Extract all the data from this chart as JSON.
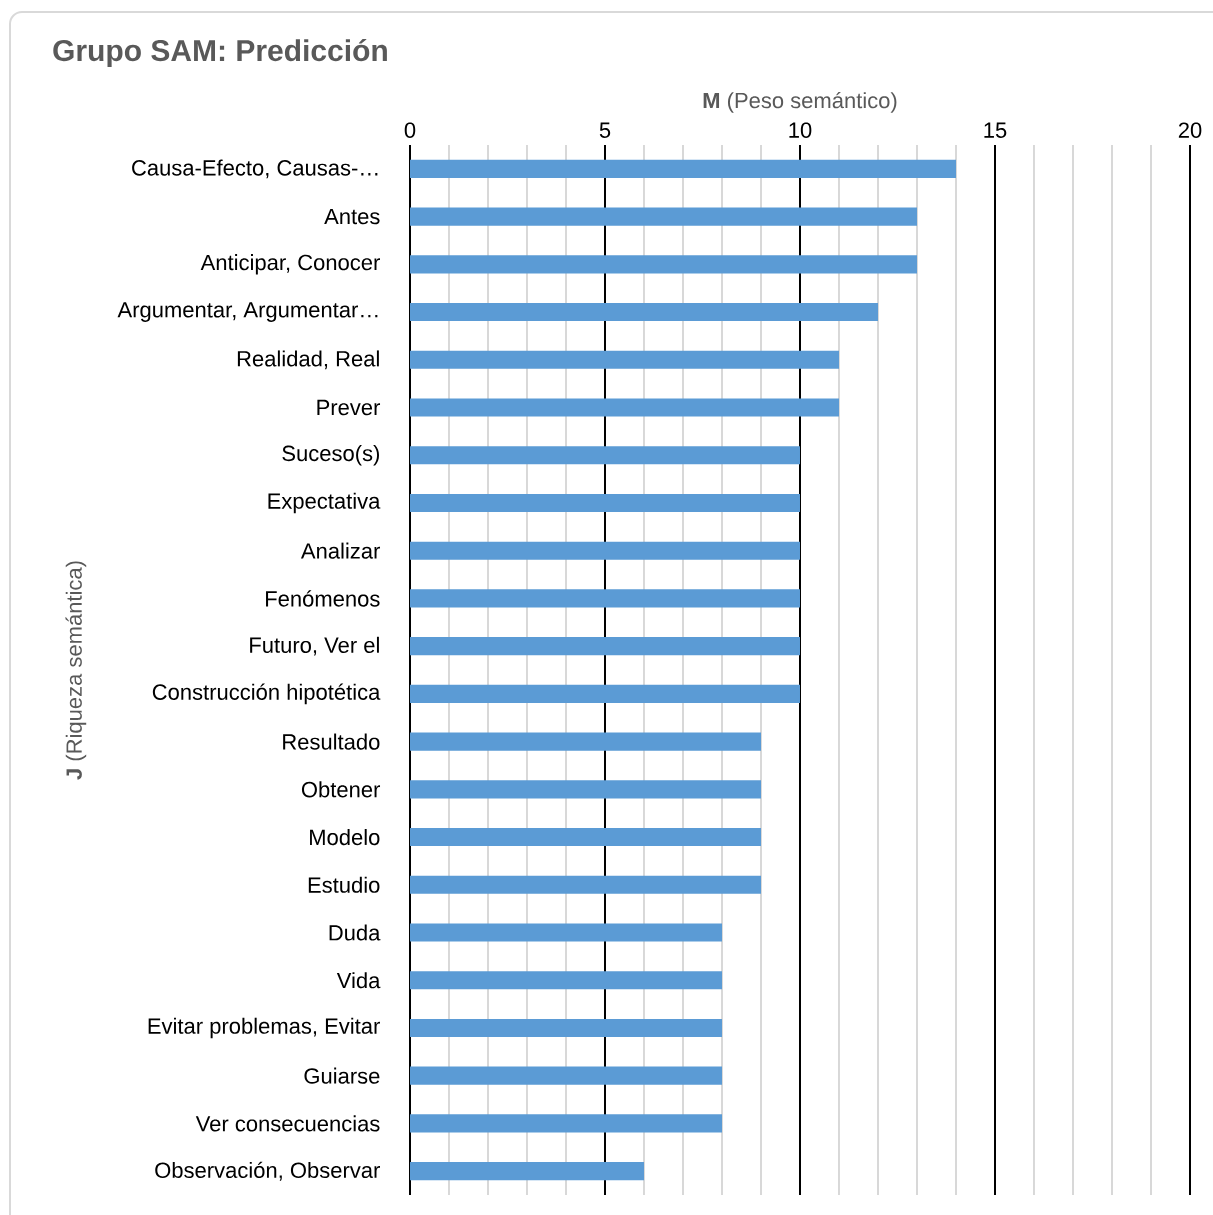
{
  "chart_data": {
    "type": "bar",
    "orientation": "horizontal",
    "title": "Grupo SAM: Predicción",
    "xlabel": "**M** (Peso semántico)",
    "ylabel": "**J** (Riqueza semántica)",
    "categories": [
      "Causa-Efecto, Causas-…",
      "Antes",
      "Anticipar, Conocer",
      "Argumentar, Argumentar…",
      "Realidad, Real",
      "Prever",
      "Suceso(s)",
      "Expectativa",
      "Analizar",
      "Fenómenos",
      "Futuro, Ver el",
      "Construcción hipotética",
      "Resultado",
      "Obtener",
      "Modelo",
      "Estudio",
      "Duda",
      "Vida",
      "Evitar problemas, Evitar",
      "Guiarse",
      "Ver consecuencias",
      "Observación, Observar"
    ],
    "values": [
      14,
      13,
      13,
      12,
      11,
      11,
      10,
      10,
      10,
      10,
      10,
      10,
      9,
      9,
      9,
      9,
      8,
      8,
      8,
      8,
      8,
      6
    ],
    "color": "#5b9bd5",
    "xlim": [
      0,
      20
    ],
    "xticks": [
      0,
      5,
      10,
      15,
      20
    ],
    "grid": "x"
  }
}
